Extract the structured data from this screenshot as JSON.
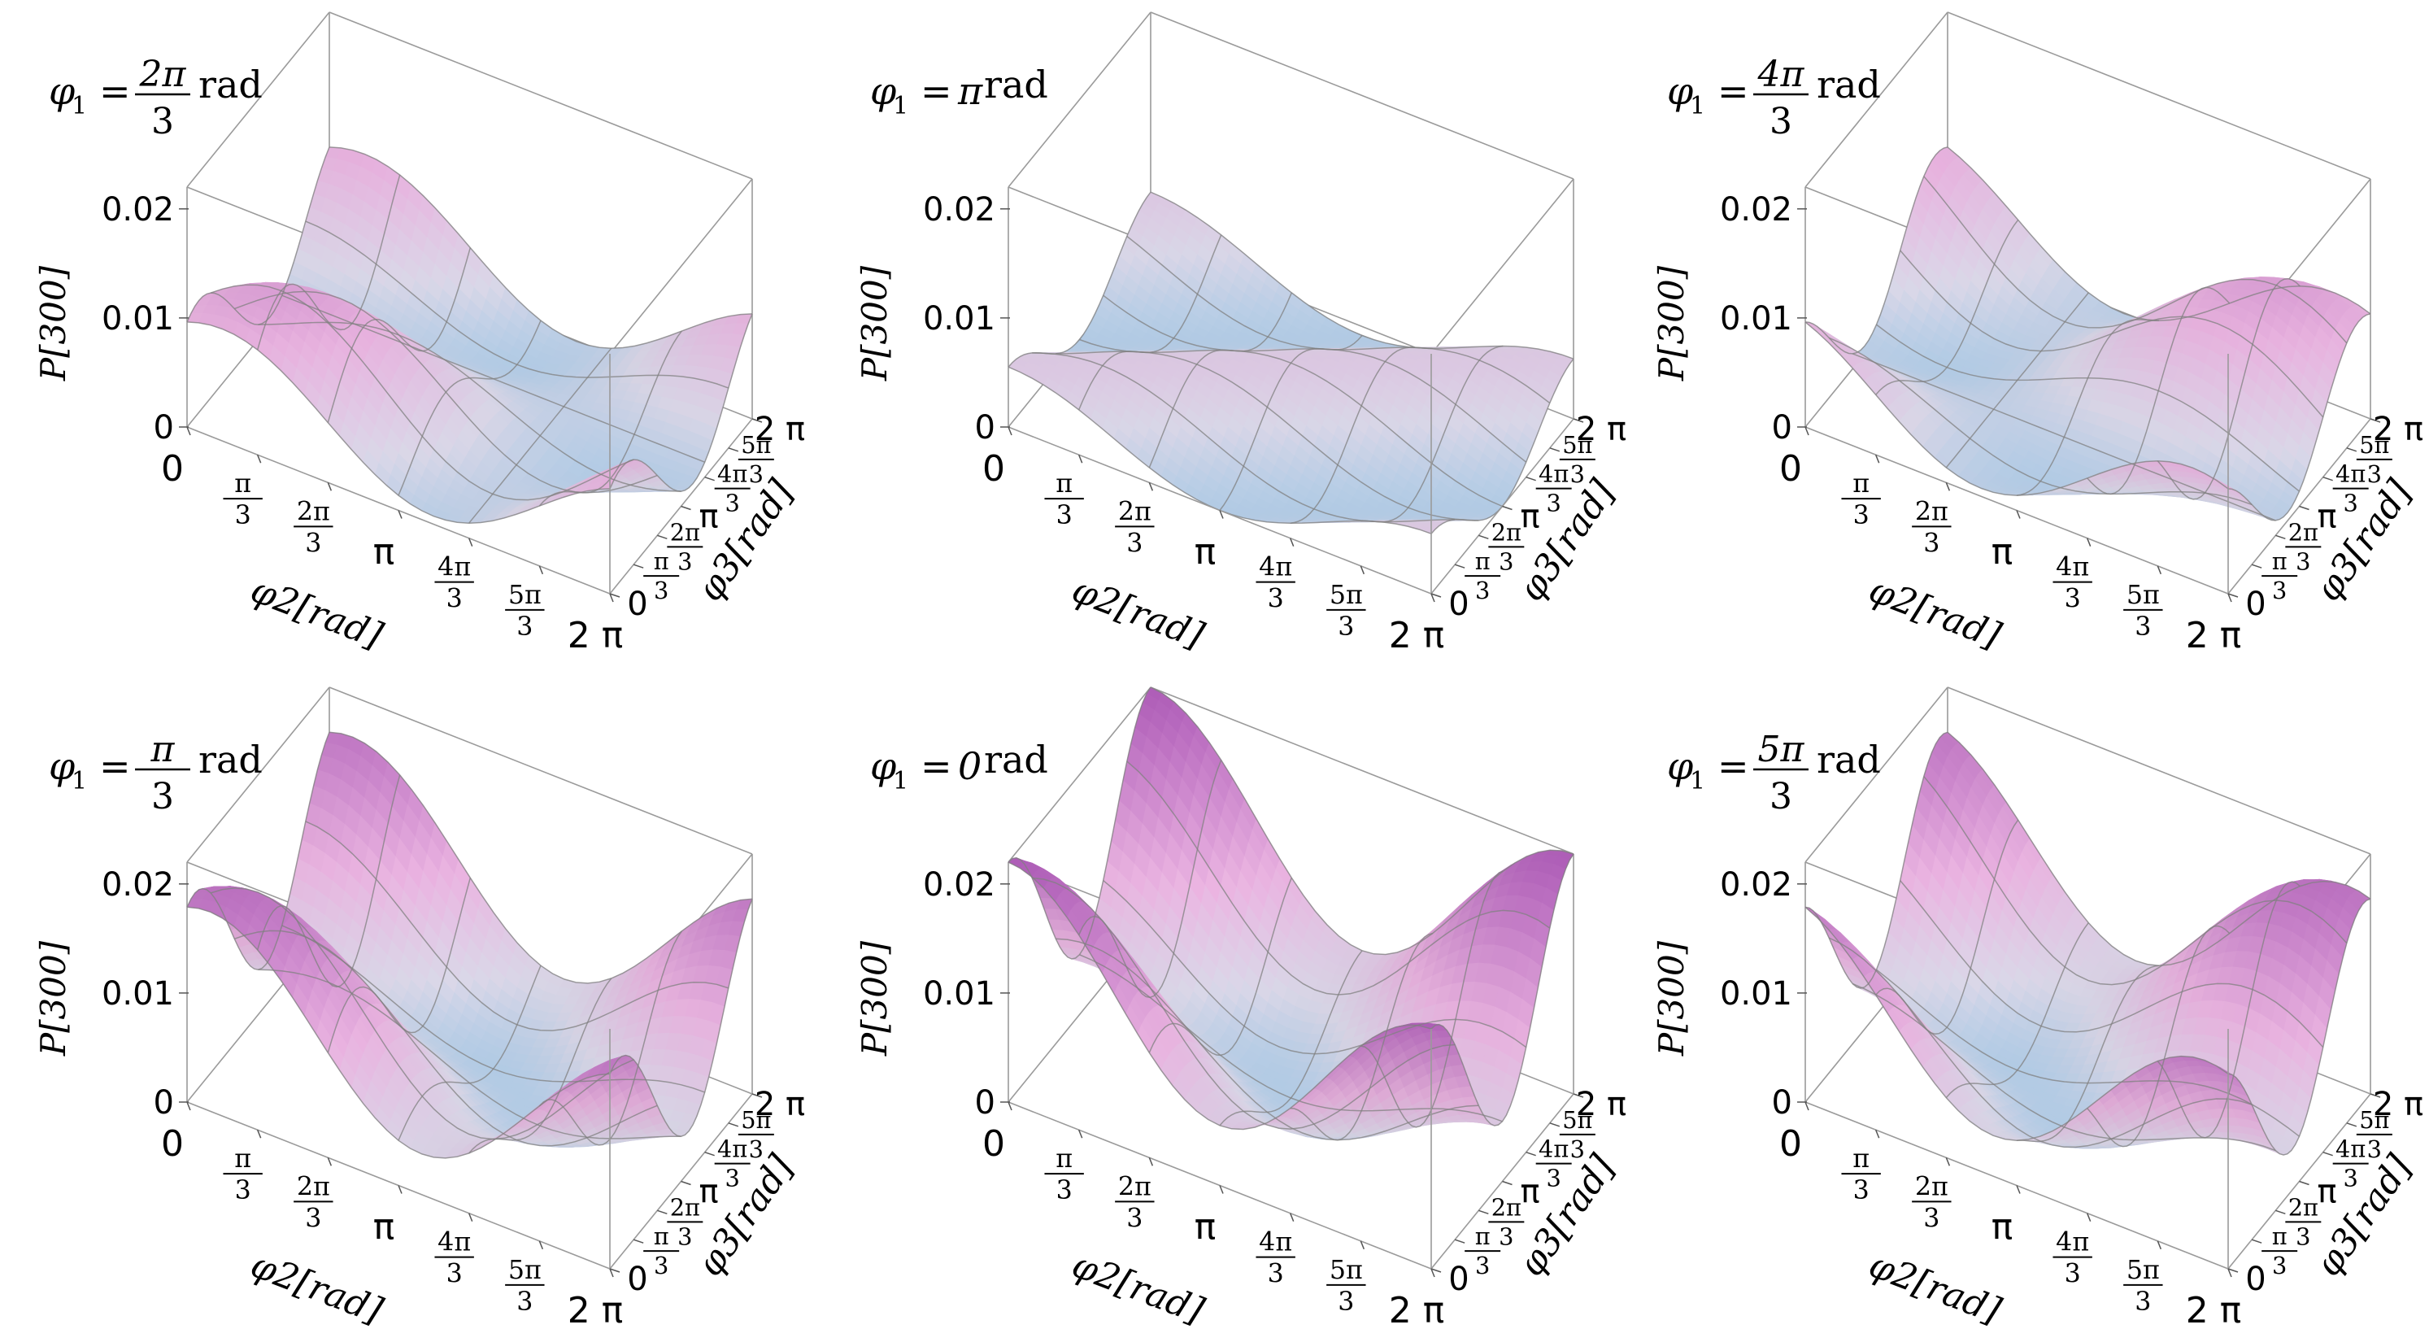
{
  "figure": {
    "common": {
      "z_axis_label": "P[300]",
      "x_axis_label": "φ2[rad]",
      "y_axis_label": "φ3[rad]",
      "z_ticks": [
        "0",
        "0.01",
        "0.02"
      ],
      "x_ticks": [
        "0",
        "π/3",
        "2π/3",
        "π",
        "4π/3",
        "5π/3",
        "2 π"
      ],
      "y_ticks": [
        "0",
        "π/3",
        "2π/3",
        "π",
        "4π/3",
        "5π/3",
        "2 π"
      ]
    }
  },
  "chart_data": [
    {
      "type": "surface3d",
      "title": "φ1 = 2π/3 rad",
      "title_parts": {
        "lhs": "φ",
        "sub": "1",
        "num": "2π",
        "den": "3",
        "unit": "rad"
      },
      "phi1": 2.0944,
      "zlim": [
        0,
        0.022
      ],
      "xlabel": "φ2[rad]",
      "ylabel": "φ3[rad]",
      "zlabel": "P[300]"
    },
    {
      "type": "surface3d",
      "title": "φ1 = π rad",
      "title_parts": {
        "lhs": "φ",
        "sub": "1",
        "num": "",
        "den": "",
        "value": "π",
        "unit": "rad"
      },
      "phi1": 3.1416,
      "zlim": [
        0,
        0.022
      ],
      "xlabel": "φ2[rad]",
      "ylabel": "φ3[rad]",
      "zlabel": "P[300]"
    },
    {
      "type": "surface3d",
      "title": "φ1 = 4π/3 rad",
      "title_parts": {
        "lhs": "φ",
        "sub": "1",
        "num": "4π",
        "den": "3",
        "unit": "rad"
      },
      "phi1": 4.1888,
      "zlim": [
        0,
        0.022
      ],
      "xlabel": "φ2[rad]",
      "ylabel": "φ3[rad]",
      "zlabel": "P[300]"
    },
    {
      "type": "surface3d",
      "title": "φ1 = π/3 rad",
      "title_parts": {
        "lhs": "φ",
        "sub": "1",
        "num": "π",
        "den": "3",
        "unit": "rad"
      },
      "phi1": 1.0472,
      "zlim": [
        0,
        0.022
      ],
      "xlabel": "φ2[rad]",
      "ylabel": "φ3[rad]",
      "zlabel": "P[300]"
    },
    {
      "type": "surface3d",
      "title": "φ1 = 0rad",
      "title_parts": {
        "lhs": "φ",
        "sub": "1",
        "num": "",
        "den": "",
        "value": "0",
        "unit": "rad"
      },
      "phi1": 0,
      "zlim": [
        0,
        0.022
      ],
      "xlabel": "φ2[rad]",
      "ylabel": "φ3[rad]",
      "zlabel": "P[300]"
    },
    {
      "type": "surface3d",
      "title": "φ1 = 5π/3 rad",
      "title_parts": {
        "lhs": "φ",
        "sub": "1",
        "num": "5π",
        "den": "3",
        "unit": "rad"
      },
      "phi1": 5.236,
      "zlim": [
        0,
        0.022
      ],
      "xlabel": "φ2[rad]",
      "ylabel": "φ3[rad]",
      "zlabel": "P[300]"
    }
  ]
}
